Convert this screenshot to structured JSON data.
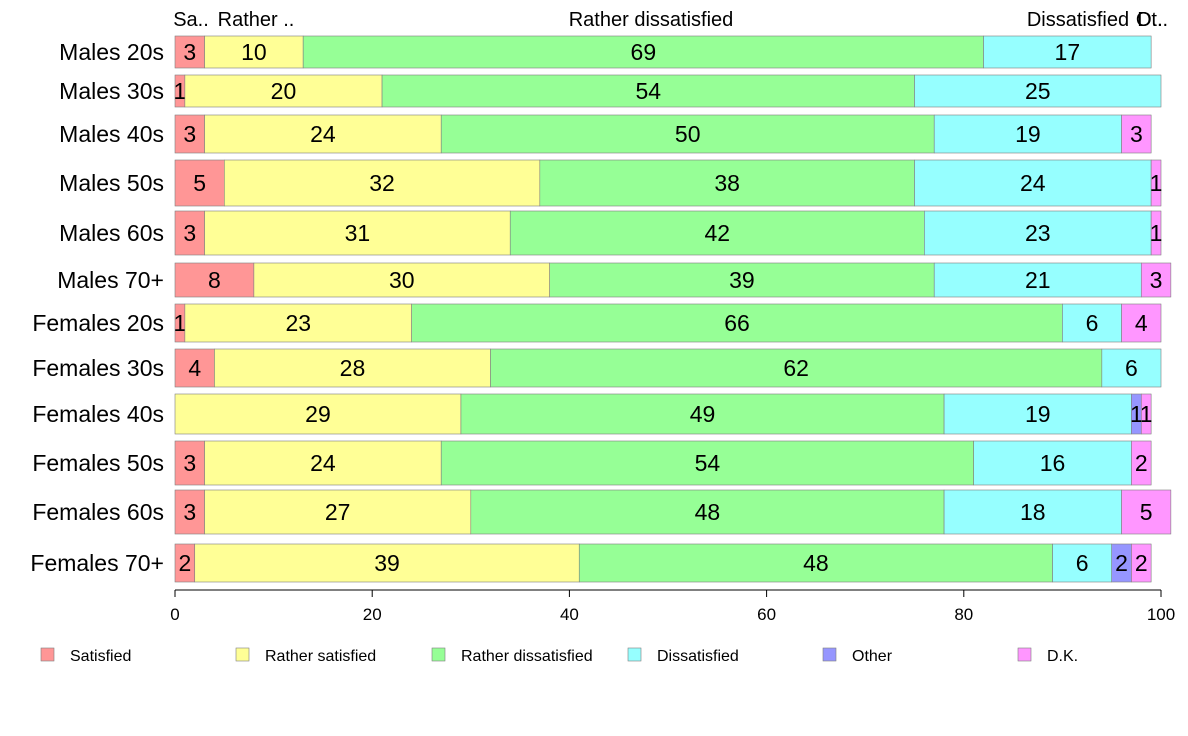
{
  "chart_data": {
    "type": "bar",
    "orientation": "horizontal",
    "stacked": true,
    "xlim": [
      0,
      100
    ],
    "x_ticks": [
      0,
      20,
      40,
      60,
      80,
      100
    ],
    "grid": false,
    "legend_position": "bottom",
    "categories": [
      "Males 20s",
      "Males 30s",
      "Males 40s",
      "Males 50s",
      "Males 60s",
      "Males 70+",
      "Females 20s",
      "Females 30s",
      "Females 40s",
      "Females 50s",
      "Females 60s",
      "Females 70+"
    ],
    "series": [
      {
        "name": "Satisfied",
        "color": "#FF9696",
        "values": [
          3,
          1,
          3,
          5,
          3,
          8,
          1,
          4,
          0,
          3,
          3,
          2
        ]
      },
      {
        "name": "Rather satisfied",
        "color": "#FFFF96",
        "values": [
          10,
          20,
          24,
          32,
          31,
          30,
          23,
          28,
          29,
          24,
          27,
          39
        ]
      },
      {
        "name": "Rather dissatisfied",
        "color": "#96FF96",
        "values": [
          69,
          54,
          50,
          38,
          42,
          39,
          66,
          62,
          49,
          54,
          48,
          48
        ]
      },
      {
        "name": "Dissatisfied",
        "color": "#96FFFF",
        "values": [
          17,
          25,
          19,
          24,
          23,
          21,
          6,
          6,
          19,
          16,
          18,
          6
        ]
      },
      {
        "name": "Other",
        "color": "#9696FF",
        "values": [
          0,
          0,
          0,
          0,
          0,
          0,
          0,
          0,
          1,
          0,
          0,
          2
        ]
      },
      {
        "name": "D.K.",
        "color": "#FF96FF",
        "values": [
          0,
          0,
          3,
          1,
          1,
          3,
          4,
          0,
          1,
          2,
          5,
          2
        ]
      }
    ],
    "top_labels": [
      "Sa..",
      "Rather ..",
      "Rather dissatisfied",
      "Dissatisfied",
      "Ot..",
      "D.."
    ]
  }
}
